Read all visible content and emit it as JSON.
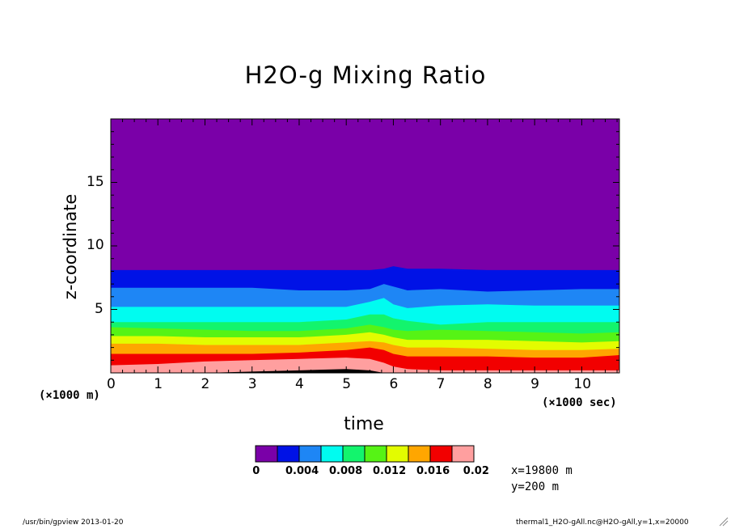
{
  "chart_data": {
    "type": "heatmap",
    "title": "H2O-g Mixing Ratio",
    "xlabel": "time",
    "ylabel": "z-coordinate",
    "x_unit_label": "(×1000 sec)",
    "y_unit_label": "(×1000 m)",
    "xlim": [
      0,
      10.8
    ],
    "ylim": [
      0,
      20
    ],
    "x_ticks": [
      0,
      1,
      2,
      3,
      4,
      5,
      6,
      7,
      8,
      9,
      10
    ],
    "y_ticks": [
      5,
      10,
      15
    ],
    "colorbar": {
      "levels": [
        0,
        0.002,
        0.004,
        0.006,
        0.008,
        0.01,
        0.012,
        0.014,
        0.016,
        0.018,
        0.02
      ],
      "labels": [
        "0",
        "0.004",
        "0.008",
        "0.012",
        "0.016",
        "0.02"
      ],
      "label_values": [
        0,
        0.004,
        0.008,
        0.012,
        0.016,
        0.02
      ],
      "colors": [
        "#7a00a8",
        "#0012e6",
        "#1e86f5",
        "#00fcf0",
        "#13f46d",
        "#56f315",
        "#e3fc00",
        "#ffa600",
        "#f20000",
        "#ff9f9f"
      ]
    },
    "contours": {
      "x": [
        0,
        1,
        2,
        3,
        4,
        5,
        5.5,
        5.8,
        6,
        6.3,
        7,
        8,
        9,
        10,
        10.8
      ],
      "boundaries": [
        {
          "level": 0.002,
          "y": [
            8.1,
            8.1,
            8.1,
            8.1,
            8.1,
            8.1,
            8.1,
            8.2,
            8.4,
            8.2,
            8.2,
            8.1,
            8.1,
            8.1,
            8.1
          ]
        },
        {
          "level": 0.004,
          "y": [
            6.7,
            6.7,
            6.7,
            6.7,
            6.5,
            6.5,
            6.6,
            7.0,
            6.8,
            6.5,
            6.6,
            6.4,
            6.5,
            6.6,
            6.6
          ]
        },
        {
          "level": 0.006,
          "y": [
            5.2,
            5.2,
            5.2,
            5.2,
            5.2,
            5.2,
            5.6,
            5.9,
            5.4,
            5.1,
            5.3,
            5.4,
            5.3,
            5.3,
            5.3
          ]
        },
        {
          "level": 0.008,
          "y": [
            4.0,
            4.0,
            4.0,
            4.0,
            4.0,
            4.2,
            4.6,
            4.6,
            4.3,
            4.1,
            3.8,
            4.0,
            4.0,
            4.0,
            4.0
          ]
        },
        {
          "level": 0.01,
          "y": [
            3.6,
            3.5,
            3.4,
            3.3,
            3.3,
            3.5,
            3.8,
            3.6,
            3.4,
            3.3,
            3.4,
            3.3,
            3.2,
            3.1,
            3.2
          ]
        },
        {
          "level": 0.012,
          "y": [
            2.9,
            2.9,
            2.8,
            2.8,
            2.8,
            3.0,
            3.2,
            3.0,
            2.8,
            2.6,
            2.6,
            2.6,
            2.5,
            2.4,
            2.5
          ]
        },
        {
          "level": 0.014,
          "y": [
            2.3,
            2.3,
            2.2,
            2.2,
            2.2,
            2.4,
            2.5,
            2.4,
            2.2,
            2.0,
            2.0,
            1.9,
            1.8,
            1.8,
            1.9
          ]
        },
        {
          "level": 0.016,
          "y": [
            1.5,
            1.5,
            1.5,
            1.5,
            1.6,
            1.8,
            2.0,
            1.8,
            1.5,
            1.3,
            1.3,
            1.3,
            1.2,
            1.2,
            1.4
          ]
        },
        {
          "level": 0.018,
          "y": [
            0.6,
            0.7,
            0.9,
            1.0,
            1.1,
            1.2,
            1.1,
            0.8,
            0.5,
            0.3,
            0.2,
            0.2,
            0.2,
            0.2,
            0.2
          ]
        },
        {
          "level": 0.02,
          "y": [
            0.0,
            0.0,
            0.0,
            0.1,
            0.2,
            0.3,
            0.2,
            0.0,
            0.0,
            0.0,
            0.0,
            0.0,
            0.0,
            0.0,
            0.0
          ]
        }
      ]
    }
  },
  "info": {
    "x_pos": "x=19800 m",
    "y_pos": "y=200 m"
  },
  "footer": {
    "left": "/usr/bin/gpview  2013-01-20",
    "right": "thermal1_H2O-gAll.nc@H2O-gAll,y=1,x=20000"
  }
}
